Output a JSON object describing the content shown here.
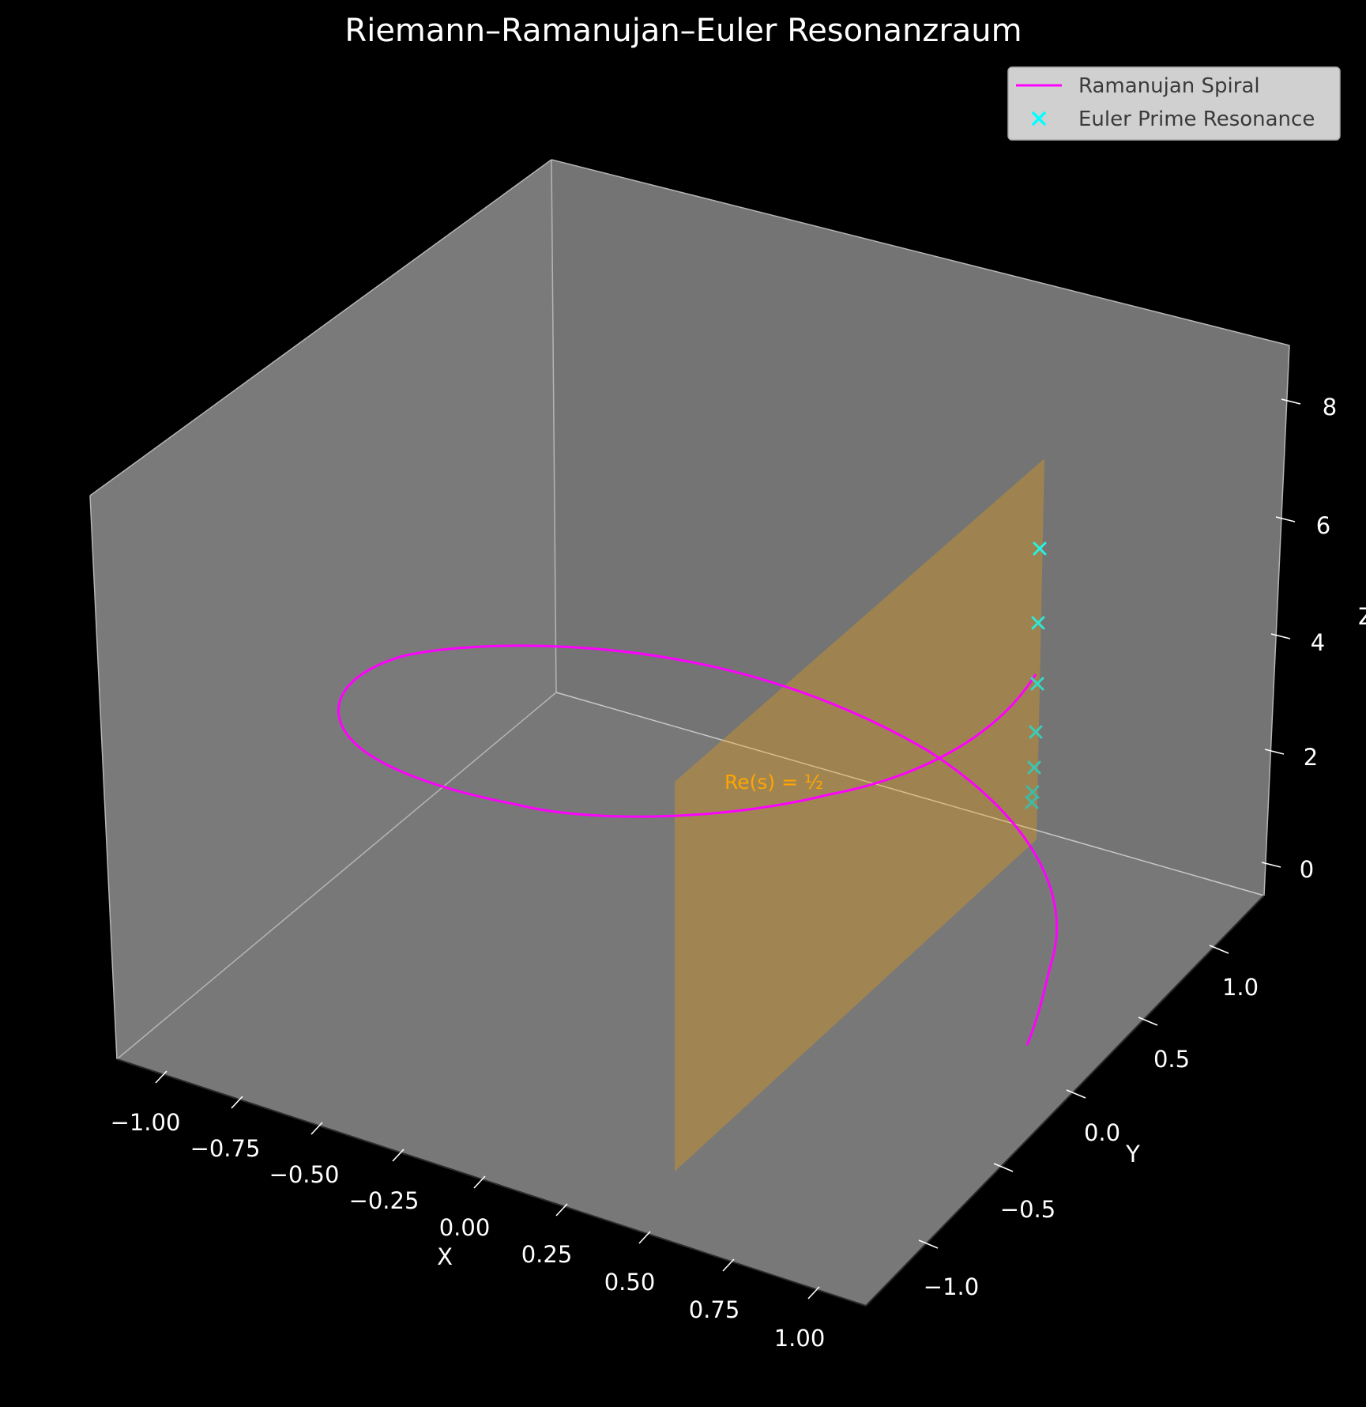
{
  "chart_data": {
    "type": "3d-line-scatter",
    "title": "Riemann–Ramanujan–Euler Resonanzraum",
    "xlabel": "X",
    "ylabel": "Y",
    "zlabel": "Z",
    "xlim": [
      -1.1,
      1.1
    ],
    "ylim": [
      -1.2,
      1.2
    ],
    "zlim": [
      -0.5,
      9
    ],
    "x_ticks": [
      "−1.00",
      "−0.75",
      "−0.50",
      "−0.25",
      "0.00",
      "0.25",
      "0.50",
      "0.75",
      "1.00"
    ],
    "y_ticks": [
      "−1.0",
      "−0.5",
      "0.0",
      "0.5",
      "1.0"
    ],
    "z_ticks": [
      "0",
      "2",
      "4",
      "6",
      "8"
    ],
    "legend_position": "top-right",
    "series": [
      {
        "name": "Ramanujan Spiral",
        "kind": "line",
        "color": "#ff00ff",
        "x_equation": "cos(t)",
        "y_equation": "sin(t)",
        "z_equation": "0.5*t/(2π)",
        "t_range": [
          0,
          6.283
        ]
      },
      {
        "name": "Euler Prime Resonance",
        "kind": "scatter",
        "marker": "x",
        "color": "#00ffff",
        "points": [
          {
            "x": 0.5,
            "y": 0.0,
            "z": 1.1
          },
          {
            "x": 0.5,
            "y": 0.0,
            "z": 1.4
          },
          {
            "x": 0.5,
            "y": 0.0,
            "z": 1.8
          },
          {
            "x": 0.5,
            "y": 0.0,
            "z": 2.4
          },
          {
            "x": 0.5,
            "y": 0.0,
            "z": 3.2
          },
          {
            "x": 0.5,
            "y": 0.0,
            "z": 4.2
          },
          {
            "x": 0.5,
            "y": 0.0,
            "z": 5.5
          }
        ]
      }
    ],
    "critical_plane": {
      "label": "Re(s) = ½",
      "x": 0.5,
      "color": "#ffa500",
      "z_range": [
        0,
        7
      ]
    }
  }
}
